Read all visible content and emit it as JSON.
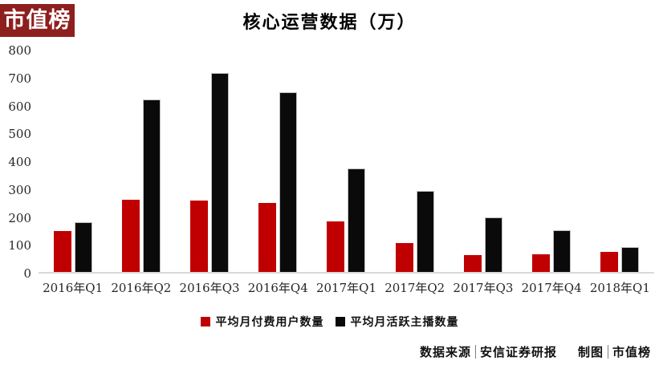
{
  "logo": {
    "text": "市值榜",
    "bg_color": "#8e1f1f",
    "text_color": "#ffffff"
  },
  "title": "核心运营数据（万）",
  "chart_data": {
    "type": "bar",
    "title": "核心运营数据（万）",
    "categories": [
      "2016年Q1",
      "2016年Q2",
      "2016年Q3",
      "2016年Q4",
      "2017年Q1",
      "2017年Q2",
      "2017年Q3",
      "2017年Q4",
      "2018年Q1"
    ],
    "series": [
      {
        "name": "平均月付费用户数量",
        "color": "#c00000",
        "values": [
          148,
          262,
          257,
          250,
          183,
          103,
          61,
          64,
          72
        ]
      },
      {
        "name": "平均月活跃主播数量",
        "color": "#0a0a0a",
        "values": [
          179,
          622,
          720,
          650,
          374,
          292,
          196,
          151,
          91
        ]
      }
    ],
    "xlabel": "",
    "ylabel": "",
    "ylim": [
      0,
      800
    ],
    "yticks": [
      800,
      700,
      600,
      500,
      400,
      300,
      200,
      100,
      0
    ],
    "grid": false,
    "legend_position": "bottom"
  },
  "footer": {
    "source_label": "数据来源",
    "source_value": "安信证券研报",
    "credit_label": "制图",
    "credit_value": "市值榜",
    "separator": "|"
  }
}
